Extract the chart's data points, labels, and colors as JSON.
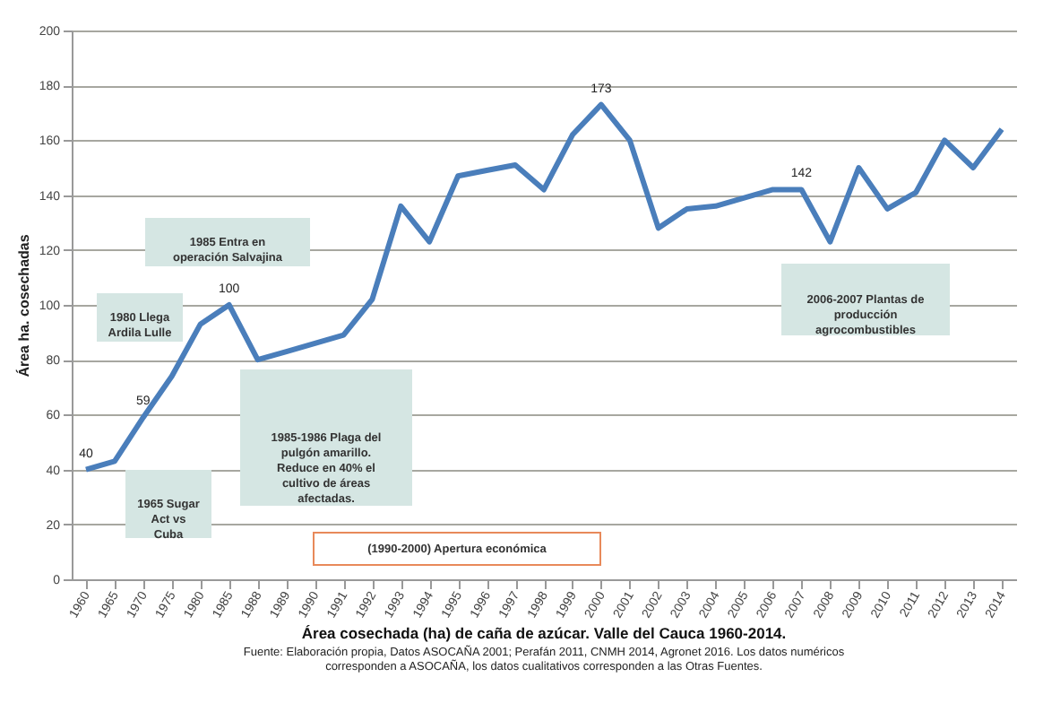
{
  "chart_data": {
    "type": "line",
    "title": "Área cosechada (ha) de caña de azúcar. Valle del Cauca 1960-2014.",
    "ylabel": "Área ha. cosechadas",
    "categories": [
      "1960",
      "1965",
      "1970",
      "1975",
      "1980",
      "1985",
      "1988",
      "1989",
      "1990",
      "1991",
      "1992",
      "1993",
      "1994",
      "1995",
      "1996",
      "1997",
      "1998",
      "1999",
      "2000",
      "2001",
      "2002",
      "2003",
      "2004",
      "2005",
      "2006",
      "2007",
      "2008",
      "2009",
      "2010",
      "2011",
      "2012",
      "2013",
      "2014"
    ],
    "series": [
      {
        "color": "#4a7ebb",
        "values": [
          40,
          43,
          59,
          74,
          93,
          100,
          80,
          83,
          86,
          89,
          102,
          136,
          123,
          147,
          149,
          151,
          142,
          162,
          173,
          160,
          128,
          135,
          136,
          139,
          142,
          142,
          123,
          150,
          135,
          141,
          160,
          150,
          164
        ],
        "value_labels": [
          "40",
          null,
          "59",
          null,
          null,
          "100",
          null,
          null,
          null,
          null,
          null,
          null,
          null,
          null,
          null,
          null,
          null,
          null,
          "173",
          null,
          null,
          null,
          null,
          null,
          null,
          "142",
          null,
          null,
          null,
          null,
          null,
          null,
          null
        ]
      }
    ],
    "ylim": [
      0,
      200
    ],
    "yticks": [
      0,
      20,
      40,
      60,
      80,
      100,
      120,
      140,
      160,
      180,
      200
    ],
    "grid": "y",
    "marker": "none",
    "line_style": "solid",
    "annotations": [
      "1965 Sugar Act vs Cuba",
      "1980 Llega Ardila Lulle",
      "1985 Entra en operación Salvajina",
      "1985-1986 Plaga del pulgón amarillo. Reduce en 40% el cultivo de áreas afectadas.",
      "(1990-2000) Apertura económica",
      "2006-2007 Plantas de producción agrocombustibles",
      "Fuente: Elaboración propia, Datos ASOCAÑA 2001; Perafán 2011, CNMH 2014, Agronet 2016. Los datos numéricos corresponden a ASOCAÑA, los datos cualitativos corresponden a las Otras Fuentes."
    ]
  }
}
